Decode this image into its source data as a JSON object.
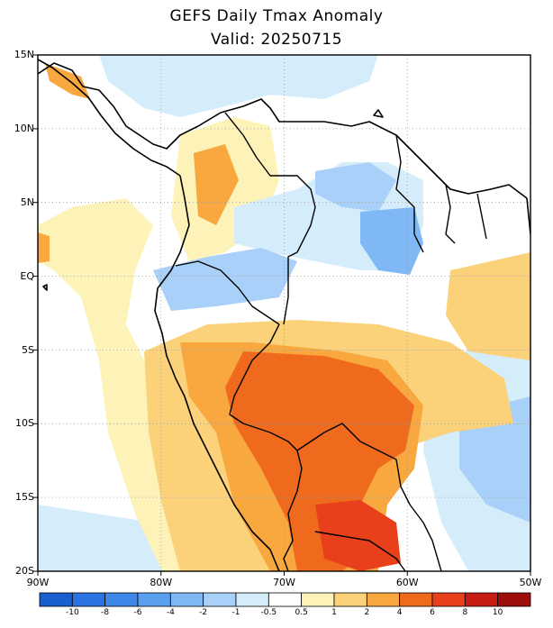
{
  "title": "GEFS Daily Tmax Anomaly",
  "subtitle": "Valid: 20250715",
  "map": {
    "projection": "lat-lon",
    "lon_range": [
      -90,
      -50
    ],
    "lat_range": [
      -20,
      15
    ],
    "lat_labels": [
      "15N",
      "10N",
      "5N",
      "EQ",
      "5S",
      "10S",
      "15S",
      "20S"
    ],
    "lon_labels": [
      "90W",
      "80W",
      "70W",
      "60W",
      "50W"
    ],
    "gridlines": "dotted",
    "colors": {
      "ocean_background": "#ffffff",
      "coastline": "#000000"
    }
  },
  "colorbar": {
    "labels": [
      "-10",
      "-8",
      "-6",
      "-4",
      "-2",
      "-1",
      "-0.5",
      "0.5",
      "1",
      "2",
      "4",
      "6",
      "8",
      "10"
    ],
    "colors": [
      "#1a5fcf",
      "#2b73e0",
      "#3f88ea",
      "#5a9ff0",
      "#7fb8f4",
      "#a8d0f8",
      "#d5ecfb",
      "#ffffff",
      "#fdf3b8",
      "#fbd27a",
      "#f8a83e",
      "#f06a1d",
      "#e8401a",
      "#c71c13",
      "#9e0f0c"
    ]
  }
}
